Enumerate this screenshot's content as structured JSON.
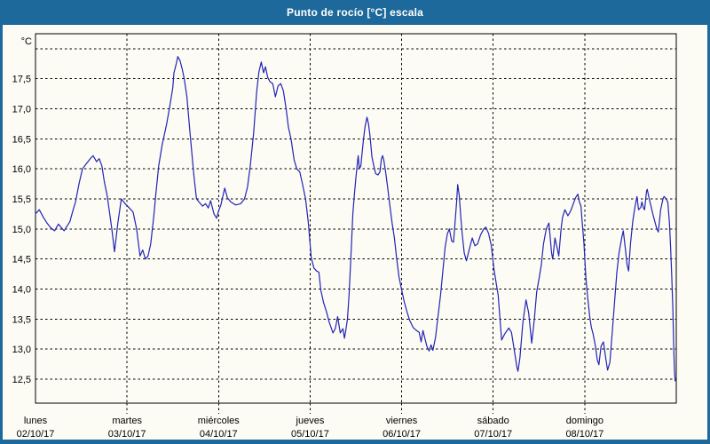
{
  "window": {
    "title": "Punto de rocío [°C] escala",
    "title_bar_color": "#1D699B",
    "border_color": "#1D699B",
    "content_background": "#FCFCF5"
  },
  "chart_data": {
    "type": "line",
    "title": "Punto de rocío [°C] escala",
    "ylabel": "°C",
    "line_color": "#2323B4",
    "grid": "black dashed; horizontal every 0.5°C, vertical at each day start",
    "legend_position": "none",
    "ylim": [
      12.1,
      18.25
    ],
    "x_hours_total": 168,
    "yticks": [
      {
        "value": 12.5,
        "label": "12,5"
      },
      {
        "value": 13.0,
        "label": "13,0"
      },
      {
        "value": 13.5,
        "label": "13,5"
      },
      {
        "value": 14.0,
        "label": "14,0"
      },
      {
        "value": 14.5,
        "label": "14,5"
      },
      {
        "value": 15.0,
        "label": "15,0"
      },
      {
        "value": 15.5,
        "label": "15,5"
      },
      {
        "value": 16.0,
        "label": "16,0"
      },
      {
        "value": 16.5,
        "label": "16,5"
      },
      {
        "value": 17.0,
        "label": "17,0"
      },
      {
        "value": 17.5,
        "label": "17,5"
      },
      {
        "value": 18.0,
        "label": ""
      }
    ],
    "days": [
      {
        "name": "lunes",
        "date": "02/10/17"
      },
      {
        "name": "martes",
        "date": "03/10/17"
      },
      {
        "name": "miércoles",
        "date": "04/10/17"
      },
      {
        "name": "jueves",
        "date": "05/10/17"
      },
      {
        "name": "viernes",
        "date": "06/10/17"
      },
      {
        "name": "sábado",
        "date": "07/10/17"
      },
      {
        "name": "domingo",
        "date": "08/10/17"
      }
    ],
    "series": [
      {
        "name": "Punto de rocío (°C)",
        "points": [
          [
            0,
            15.25
          ],
          [
            1,
            15.32
          ],
          [
            2,
            15.2
          ],
          [
            3,
            15.1
          ],
          [
            4,
            15.02
          ],
          [
            5,
            14.97
          ],
          [
            6,
            15.08
          ],
          [
            7.5,
            14.97
          ],
          [
            9,
            15.12
          ],
          [
            10,
            15.35
          ],
          [
            10.5,
            15.45
          ],
          [
            11.4,
            15.75
          ],
          [
            12.3,
            16.0
          ],
          [
            13.5,
            16.1
          ],
          [
            14.5,
            16.18
          ],
          [
            15.1,
            16.22
          ],
          [
            16,
            16.12
          ],
          [
            16.7,
            16.17
          ],
          [
            17.4,
            16.05
          ],
          [
            18,
            15.8
          ],
          [
            18.8,
            15.55
          ],
          [
            20,
            15.0
          ],
          [
            20.7,
            14.62
          ],
          [
            21.6,
            15.1
          ],
          [
            22.5,
            15.5
          ],
          [
            23.5,
            15.42
          ],
          [
            24.6,
            15.35
          ],
          [
            25.6,
            15.28
          ],
          [
            26.5,
            15.0
          ],
          [
            27.4,
            14.55
          ],
          [
            28.1,
            14.65
          ],
          [
            28.8,
            14.5
          ],
          [
            29.5,
            14.55
          ],
          [
            30.2,
            14.75
          ],
          [
            31,
            15.2
          ],
          [
            31.5,
            15.55
          ],
          [
            32.3,
            16.05
          ],
          [
            33.2,
            16.4
          ],
          [
            34.4,
            16.75
          ],
          [
            35.1,
            17.0
          ],
          [
            36,
            17.35
          ],
          [
            36.3,
            17.6
          ],
          [
            36.9,
            17.75
          ],
          [
            37.3,
            17.87
          ],
          [
            37.9,
            17.8
          ],
          [
            38.5,
            17.65
          ],
          [
            39,
            17.5
          ],
          [
            39.7,
            17.2
          ],
          [
            40.5,
            16.6
          ],
          [
            41.5,
            15.9
          ],
          [
            42.2,
            15.5
          ],
          [
            43,
            15.44
          ],
          [
            43.8,
            15.38
          ],
          [
            44.6,
            15.42
          ],
          [
            45.3,
            15.35
          ],
          [
            45.9,
            15.47
          ],
          [
            46.8,
            15.25
          ],
          [
            47.5,
            15.18
          ],
          [
            48,
            15.3
          ],
          [
            48.6,
            15.4
          ],
          [
            49.6,
            15.68
          ],
          [
            50.3,
            15.52
          ],
          [
            51.2,
            15.45
          ],
          [
            52.5,
            15.4
          ],
          [
            53.8,
            15.42
          ],
          [
            54.8,
            15.5
          ],
          [
            55.6,
            15.7
          ],
          [
            56.3,
            16.05
          ],
          [
            57.2,
            16.6
          ],
          [
            58,
            17.3
          ],
          [
            58.6,
            17.62
          ],
          [
            59.2,
            17.78
          ],
          [
            59.8,
            17.6
          ],
          [
            60.3,
            17.7
          ],
          [
            60.9,
            17.52
          ],
          [
            61.5,
            17.45
          ],
          [
            62.2,
            17.42
          ],
          [
            62.9,
            17.2
          ],
          [
            63.6,
            17.38
          ],
          [
            64.3,
            17.42
          ],
          [
            65,
            17.3
          ],
          [
            65.7,
            17.0
          ],
          [
            66.3,
            16.7
          ],
          [
            67,
            16.5
          ],
          [
            67.8,
            16.15
          ],
          [
            68.5,
            16.0
          ],
          [
            69.3,
            15.95
          ],
          [
            70,
            15.75
          ],
          [
            70.8,
            15.5
          ],
          [
            71.5,
            15.12
          ],
          [
            72,
            14.75
          ],
          [
            72.3,
            14.52
          ],
          [
            73,
            14.35
          ],
          [
            73.7,
            14.3
          ],
          [
            74.3,
            14.28
          ],
          [
            74.8,
            13.98
          ],
          [
            75.5,
            13.78
          ],
          [
            76.3,
            13.62
          ],
          [
            77,
            13.45
          ],
          [
            78,
            13.27
          ],
          [
            78.6,
            13.34
          ],
          [
            79.2,
            13.54
          ],
          [
            79.9,
            13.27
          ],
          [
            80.6,
            13.34
          ],
          [
            81,
            13.18
          ],
          [
            81.3,
            13.29
          ],
          [
            81.8,
            13.5
          ],
          [
            82.2,
            13.9
          ],
          [
            82.7,
            14.54
          ],
          [
            83.2,
            15.26
          ],
          [
            83.6,
            15.57
          ],
          [
            84,
            15.85
          ],
          [
            84.4,
            16.1
          ],
          [
            84.6,
            16.22
          ],
          [
            84.9,
            16.0
          ],
          [
            85.3,
            16.05
          ],
          [
            85.6,
            16.25
          ],
          [
            86,
            16.5
          ],
          [
            86.4,
            16.7
          ],
          [
            86.9,
            16.86
          ],
          [
            87.3,
            16.75
          ],
          [
            87.7,
            16.55
          ],
          [
            88.2,
            16.2
          ],
          [
            88.7,
            16.05
          ],
          [
            89.2,
            15.92
          ],
          [
            89.8,
            15.9
          ],
          [
            90.3,
            15.95
          ],
          [
            90.7,
            16.17
          ],
          [
            91,
            16.22
          ],
          [
            91.3,
            16.15
          ],
          [
            91.8,
            15.95
          ],
          [
            92.3,
            15.7
          ],
          [
            92.9,
            15.4
          ],
          [
            93.5,
            15.1
          ],
          [
            94.1,
            14.85
          ],
          [
            94.7,
            14.5
          ],
          [
            95.3,
            14.2
          ],
          [
            96,
            13.98
          ],
          [
            96.7,
            13.78
          ],
          [
            97.4,
            13.62
          ],
          [
            98.1,
            13.48
          ],
          [
            99,
            13.36
          ],
          [
            99.9,
            13.31
          ],
          [
            100.6,
            13.28
          ],
          [
            101.1,
            13.12
          ],
          [
            101.6,
            13.31
          ],
          [
            102,
            13.2
          ],
          [
            102.6,
            13.05
          ],
          [
            103.2,
            12.97
          ],
          [
            103.7,
            13.07
          ],
          [
            104.2,
            12.98
          ],
          [
            104.9,
            13.2
          ],
          [
            105.5,
            13.53
          ],
          [
            106.2,
            13.9
          ],
          [
            106.8,
            14.3
          ],
          [
            107.4,
            14.7
          ],
          [
            108,
            14.92
          ],
          [
            108.5,
            15.0
          ],
          [
            109.1,
            14.8
          ],
          [
            109.6,
            14.78
          ],
          [
            110,
            15.1
          ],
          [
            110.4,
            15.45
          ],
          [
            110.7,
            15.74
          ],
          [
            111.1,
            15.55
          ],
          [
            111.5,
            15.2
          ],
          [
            111.9,
            14.9
          ],
          [
            112.4,
            14.6
          ],
          [
            113,
            14.47
          ],
          [
            113.7,
            14.65
          ],
          [
            114.5,
            14.85
          ],
          [
            115.2,
            14.72
          ],
          [
            115.9,
            14.75
          ],
          [
            116.7,
            14.9
          ],
          [
            117.5,
            15.0
          ],
          [
            118.1,
            15.03
          ],
          [
            118.8,
            14.92
          ],
          [
            119.5,
            14.72
          ],
          [
            120.2,
            14.33
          ],
          [
            120.9,
            14.05
          ],
          [
            121.3,
            13.9
          ],
          [
            122.2,
            13.15
          ],
          [
            123,
            13.25
          ],
          [
            124.1,
            13.35
          ],
          [
            124.8,
            13.28
          ],
          [
            125.6,
            12.95
          ],
          [
            126.2,
            12.7
          ],
          [
            126.5,
            12.63
          ],
          [
            127,
            12.85
          ],
          [
            127.8,
            13.45
          ],
          [
            128.6,
            13.82
          ],
          [
            129.3,
            13.6
          ],
          [
            130.1,
            13.1
          ],
          [
            130.8,
            13.5
          ],
          [
            131.4,
            13.95
          ],
          [
            132.1,
            14.2
          ],
          [
            132.6,
            14.4
          ],
          [
            133.2,
            14.75
          ],
          [
            133.9,
            15.0
          ],
          [
            134.6,
            15.1
          ],
          [
            135.3,
            14.6
          ],
          [
            135.6,
            14.5
          ],
          [
            136.2,
            14.85
          ],
          [
            136.7,
            14.7
          ],
          [
            137.2,
            14.55
          ],
          [
            137.8,
            15.0
          ],
          [
            138.2,
            15.2
          ],
          [
            138.8,
            15.32
          ],
          [
            139.6,
            15.22
          ],
          [
            140.3,
            15.3
          ],
          [
            141,
            15.42
          ],
          [
            141.6,
            15.52
          ],
          [
            142.2,
            15.58
          ],
          [
            142.6,
            15.45
          ],
          [
            143,
            15.38
          ],
          [
            143.3,
            15.15
          ],
          [
            143.8,
            14.75
          ],
          [
            144.3,
            14.2
          ],
          [
            144.7,
            13.9
          ],
          [
            145.3,
            13.55
          ],
          [
            145.7,
            13.37
          ],
          [
            146.2,
            13.25
          ],
          [
            146.8,
            13.05
          ],
          [
            147.3,
            12.82
          ],
          [
            147.7,
            12.74
          ],
          [
            148.3,
            13.05
          ],
          [
            148.9,
            13.12
          ],
          [
            149.5,
            12.85
          ],
          [
            150,
            12.65
          ],
          [
            150.6,
            12.78
          ],
          [
            151.2,
            13.27
          ],
          [
            151.8,
            13.77
          ],
          [
            152.4,
            14.27
          ],
          [
            153,
            14.6
          ],
          [
            153.7,
            14.85
          ],
          [
            154.1,
            14.97
          ],
          [
            154.6,
            14.7
          ],
          [
            155.1,
            14.4
          ],
          [
            155.5,
            14.3
          ],
          [
            156,
            14.75
          ],
          [
            156.6,
            15.13
          ],
          [
            157.2,
            15.38
          ],
          [
            157.7,
            15.54
          ],
          [
            158.1,
            15.32
          ],
          [
            158.7,
            15.36
          ],
          [
            159,
            15.45
          ],
          [
            159.4,
            15.35
          ],
          [
            159.7,
            15.32
          ],
          [
            160.2,
            15.63
          ],
          [
            160.4,
            15.66
          ],
          [
            160.9,
            15.5
          ],
          [
            161.3,
            15.4
          ],
          [
            161.8,
            15.26
          ],
          [
            162.4,
            15.12
          ],
          [
            162.9,
            15.0
          ],
          [
            163.3,
            14.95
          ],
          [
            163.9,
            15.32
          ],
          [
            164.5,
            15.5
          ],
          [
            164.8,
            15.54
          ],
          [
            165.4,
            15.5
          ],
          [
            165.8,
            15.44
          ],
          [
            166.2,
            15.1
          ],
          [
            166.5,
            14.7
          ],
          [
            166.8,
            14.25
          ],
          [
            167.1,
            13.7
          ],
          [
            167.3,
            13.1
          ],
          [
            167.5,
            12.65
          ],
          [
            167.7,
            12.47
          ]
        ]
      }
    ]
  }
}
